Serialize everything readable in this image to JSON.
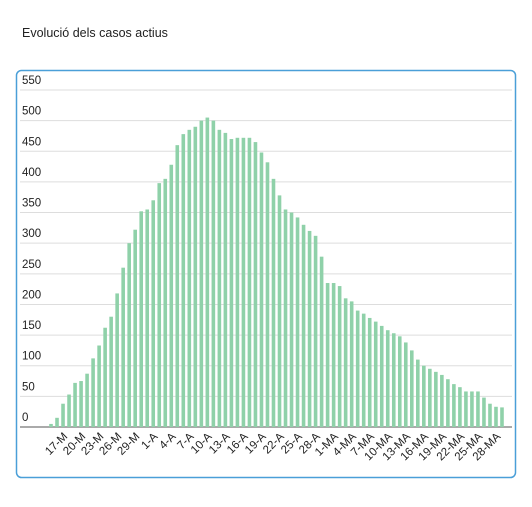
{
  "chart_data": {
    "type": "bar",
    "title": "Evolució dels casos actius",
    "categories": [
      null,
      null,
      "17-M",
      null,
      null,
      "20-M",
      null,
      null,
      "23-M",
      null,
      null,
      "26-M",
      null,
      null,
      "29-M",
      null,
      null,
      "1-A",
      null,
      null,
      "4-A",
      null,
      null,
      "7-A",
      null,
      null,
      "10-A",
      null,
      null,
      "13-A",
      null,
      null,
      "16-A",
      null,
      null,
      "19-A",
      null,
      null,
      "22-A",
      null,
      null,
      "25-A",
      null,
      null,
      "28-A",
      null,
      null,
      "1-MA",
      null,
      null,
      "4-MA",
      null,
      null,
      "7-MA",
      null,
      null,
      "10-MA",
      null,
      null,
      "13-MA",
      null,
      null,
      "16-MA",
      null,
      null,
      "19-MA",
      null,
      null,
      "22-MA",
      null,
      null,
      "25-MA",
      null,
      null,
      "28-MA",
      null
    ],
    "values": [
      5,
      15,
      38,
      53,
      72,
      75,
      87,
      112,
      133,
      162,
      180,
      218,
      260,
      300,
      322,
      352,
      355,
      370,
      398,
      405,
      428,
      460,
      478,
      485,
      490,
      500,
      505,
      500,
      485,
      480,
      470,
      472,
      472,
      472,
      465,
      448,
      432,
      405,
      378,
      355,
      350,
      342,
      330,
      320,
      312,
      278,
      235,
      235,
      230,
      210,
      205,
      190,
      185,
      178,
      172,
      165,
      158,
      153,
      148,
      138,
      125,
      110,
      100,
      95,
      90,
      85,
      78,
      70,
      65,
      58,
      58,
      58,
      48,
      38,
      33,
      32
    ],
    "color": "#8fd1a9",
    "ylim": [
      0,
      550
    ],
    "yticks": [
      0,
      50,
      100,
      150,
      200,
      250,
      300,
      350,
      400,
      450,
      500,
      550
    ],
    "grid": true
  }
}
